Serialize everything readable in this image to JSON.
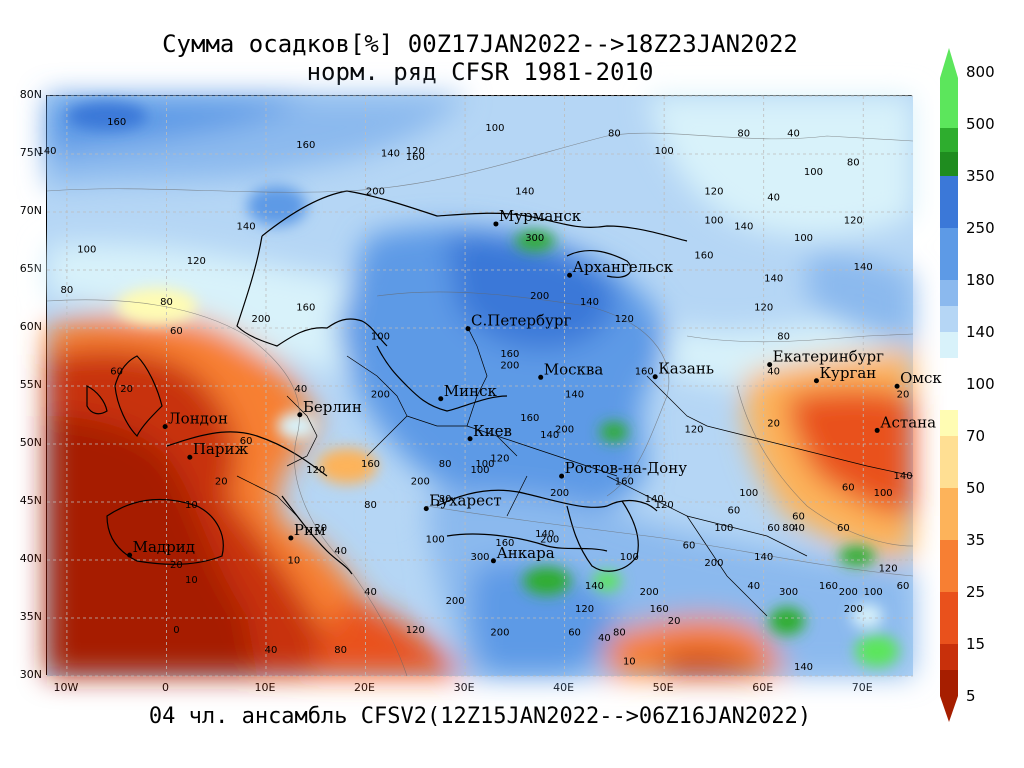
{
  "title_line1": "Сумма осадков[%] 00Z17JAN2022-->18Z23JAN2022",
  "title_line2": "норм. ряд CFSR 1981-2010",
  "footer": "04 чл. ансамбль CFSV2(12Z15JAN2022-->06Z16JAN2022)",
  "lat_labels": [
    "80N",
    "75N",
    "70N",
    "65N",
    "60N",
    "55N",
    "50N",
    "45N",
    "40N",
    "35N",
    "30N"
  ],
  "lon_labels": [
    "10W",
    "0",
    "10E",
    "20E",
    "30E",
    "40E",
    "50E",
    "60E",
    "70E"
  ],
  "colorbar": {
    "labels": [
      "800",
      "500",
      "350",
      "250",
      "180",
      "140",
      "100",
      "70",
      "50",
      "35",
      "25",
      "15",
      "5"
    ],
    "colors": [
      "#5ce65c",
      "#2ead2e",
      "#1f8c1f",
      "#3b78d8",
      "#5d9ae6",
      "#8bb9ee",
      "#b5d6f5",
      "#d8f2fa",
      "#fffcb3",
      "#ffdf93",
      "#fdb35a",
      "#f77f33",
      "#e9511c",
      "#c8300b",
      "#a61e00"
    ]
  },
  "cities": [
    {
      "name": "Мурманск",
      "lon": 33.1,
      "lat": 68.97
    },
    {
      "name": "Архангельск",
      "lon": 40.5,
      "lat": 64.55
    },
    {
      "name": "С.Петербург",
      "lon": 30.3,
      "lat": 59.94
    },
    {
      "name": "Москва",
      "lon": 37.6,
      "lat": 55.75
    },
    {
      "name": "Казань",
      "lon": 49.1,
      "lat": 55.8
    },
    {
      "name": "Екатеринбург",
      "lon": 60.6,
      "lat": 56.84
    },
    {
      "name": "Курган",
      "lon": 65.3,
      "lat": 55.45
    },
    {
      "name": "Омск",
      "lon": 73.4,
      "lat": 54.98
    },
    {
      "name": "Астана",
      "lon": 71.4,
      "lat": 51.17
    },
    {
      "name": "Минск",
      "lon": 27.56,
      "lat": 53.9
    },
    {
      "name": "Берлин",
      "lon": 13.4,
      "lat": 52.52
    },
    {
      "name": "Лондон",
      "lon": -0.13,
      "lat": 51.5
    },
    {
      "name": "Париж",
      "lon": 2.35,
      "lat": 48.86
    },
    {
      "name": "Киев",
      "lon": 30.5,
      "lat": 50.45
    },
    {
      "name": "Ростов-на-Дону",
      "lon": 39.7,
      "lat": 47.23
    },
    {
      "name": "Бухарест",
      "lon": 26.1,
      "lat": 44.43
    },
    {
      "name": "Мадрид",
      "lon": -3.7,
      "lat": 40.42
    },
    {
      "name": "Рим",
      "lon": 12.5,
      "lat": 41.9
    },
    {
      "name": "Анкара",
      "lon": 32.85,
      "lat": 39.93
    }
  ],
  "contour_labels": [
    {
      "t": "160",
      "lon": -5,
      "lat": 77.5
    },
    {
      "t": "140",
      "lon": -12,
      "lat": 75
    },
    {
      "t": "160",
      "lon": 14,
      "lat": 75.5
    },
    {
      "t": "140",
      "lon": 22.5,
      "lat": 74.8
    },
    {
      "t": "120",
      "lon": 25,
      "lat": 75
    },
    {
      "t": "160",
      "lon": 25,
      "lat": 74.5
    },
    {
      "t": "100",
      "lon": 33,
      "lat": 77
    },
    {
      "t": "80",
      "lon": 45,
      "lat": 76.5
    },
    {
      "t": "100",
      "lon": 50,
      "lat": 75
    },
    {
      "t": "80",
      "lon": 58,
      "lat": 76.5
    },
    {
      "t": "40",
      "lon": 63,
      "lat": 76.5
    },
    {
      "t": "200",
      "lon": 21,
      "lat": 71.5
    },
    {
      "t": "140",
      "lon": 36,
      "lat": 71.5
    },
    {
      "t": "140",
      "lon": 8,
      "lat": 68.5
    },
    {
      "t": "100",
      "lon": -8,
      "lat": 66.5
    },
    {
      "t": "120",
      "lon": 3,
      "lat": 65.5
    },
    {
      "t": "300",
      "lon": 37,
      "lat": 67.5
    },
    {
      "t": "200",
      "lon": 37.5,
      "lat": 62.5
    },
    {
      "t": "140",
      "lon": 42.5,
      "lat": 62
    },
    {
      "t": "120",
      "lon": 46,
      "lat": 60.5
    },
    {
      "t": "80",
      "lon": -10,
      "lat": 63
    },
    {
      "t": "80",
      "lon": 0,
      "lat": 62
    },
    {
      "t": "200",
      "lon": 9.5,
      "lat": 60.5
    },
    {
      "t": "160",
      "lon": 14,
      "lat": 61.5
    },
    {
      "t": "60",
      "lon": 1,
      "lat": 59.5
    },
    {
      "t": "100",
      "lon": 21.5,
      "lat": 59
    },
    {
      "t": "160",
      "lon": 34.5,
      "lat": 57.5
    },
    {
      "t": "200",
      "lon": 34.5,
      "lat": 56.5
    },
    {
      "t": "160",
      "lon": 48,
      "lat": 56
    },
    {
      "t": "140",
      "lon": 61,
      "lat": 64
    },
    {
      "t": "120",
      "lon": 60,
      "lat": 61.5
    },
    {
      "t": "80",
      "lon": 62,
      "lat": 59
    },
    {
      "t": "160",
      "lon": 54,
      "lat": 66
    },
    {
      "t": "100",
      "lon": 55,
      "lat": 69
    },
    {
      "t": "120",
      "lon": 55,
      "lat": 71.5
    },
    {
      "t": "140",
      "lon": 58,
      "lat": 68.5
    },
    {
      "t": "100",
      "lon": 64,
      "lat": 67.5
    },
    {
      "t": "120",
      "lon": 69,
      "lat": 69
    },
    {
      "t": "140",
      "lon": 70,
      "lat": 65
    },
    {
      "t": "100",
      "lon": 65,
      "lat": 73.2
    },
    {
      "t": "80",
      "lon": 69,
      "lat": 74
    },
    {
      "t": "40",
      "lon": 61,
      "lat": 71
    },
    {
      "t": "40",
      "lon": 61,
      "lat": 56
    },
    {
      "t": "20",
      "lon": 61,
      "lat": 51.5
    },
    {
      "t": "20",
      "lon": 74,
      "lat": 54
    },
    {
      "t": "200",
      "lon": 21.5,
      "lat": 54
    },
    {
      "t": "160",
      "lon": 36.5,
      "lat": 52
    },
    {
      "t": "140",
      "lon": 38.5,
      "lat": 50.5
    },
    {
      "t": "200",
      "lon": 40,
      "lat": 51
    },
    {
      "t": "140",
      "lon": 41,
      "lat": 54
    },
    {
      "t": "120",
      "lon": 33.5,
      "lat": 48.5
    },
    {
      "t": "100",
      "lon": 32,
      "lat": 48
    },
    {
      "t": "160",
      "lon": 46,
      "lat": 46.5
    },
    {
      "t": "200",
      "lon": 39.5,
      "lat": 45.5
    },
    {
      "t": "140",
      "lon": 49,
      "lat": 45
    },
    {
      "t": "120",
      "lon": 50,
      "lat": 44.5
    },
    {
      "t": "100",
      "lon": 58.5,
      "lat": 45.5
    },
    {
      "t": "60",
      "lon": 57,
      "lat": 44
    },
    {
      "t": "100",
      "lon": 56,
      "lat": 42.5
    },
    {
      "t": "60",
      "lon": 61,
      "lat": 42.5
    },
    {
      "t": "80",
      "lon": 62.5,
      "lat": 42.5
    },
    {
      "t": "60",
      "lon": 63.5,
      "lat": 43.5
    },
    {
      "t": "40",
      "lon": 63.5,
      "lat": 42.5
    },
    {
      "t": "60",
      "lon": 68,
      "lat": 42.5
    },
    {
      "t": "140",
      "lon": 60,
      "lat": 40
    },
    {
      "t": "160",
      "lon": 66.5,
      "lat": 37.5
    },
    {
      "t": "200",
      "lon": 68.5,
      "lat": 37
    },
    {
      "t": "100",
      "lon": 71,
      "lat": 37
    },
    {
      "t": "200",
      "lon": 69,
      "lat": 35.5
    },
    {
      "t": "300",
      "lon": 62.5,
      "lat": 37
    },
    {
      "t": "40",
      "lon": 59,
      "lat": 37.5
    },
    {
      "t": "140",
      "lon": 64,
      "lat": 30.5
    },
    {
      "t": "120",
      "lon": 72.5,
      "lat": 39
    },
    {
      "t": "60",
      "lon": 74,
      "lat": 37.5
    },
    {
      "t": "200",
      "lon": 55,
      "lat": 39.5
    },
    {
      "t": "60",
      "lon": 52.5,
      "lat": 41
    },
    {
      "t": "100",
      "lon": 46.5,
      "lat": 40
    },
    {
      "t": "200",
      "lon": 48.5,
      "lat": 37
    },
    {
      "t": "160",
      "lon": 49.5,
      "lat": 35.5
    },
    {
      "t": "20",
      "lon": 51,
      "lat": 34.5
    },
    {
      "t": "140",
      "lon": 43,
      "lat": 37.5
    },
    {
      "t": "120",
      "lon": 42,
      "lat": 35.5
    },
    {
      "t": "60",
      "lon": 41,
      "lat": 33.5
    },
    {
      "t": "40",
      "lon": 44,
      "lat": 33
    },
    {
      "t": "80",
      "lon": 45.5,
      "lat": 33.5
    },
    {
      "t": "10",
      "lon": 46.5,
      "lat": 31
    },
    {
      "t": "200",
      "lon": 33.5,
      "lat": 33.5
    },
    {
      "t": "120",
      "lon": 25,
      "lat": 33.7
    },
    {
      "t": "200",
      "lon": 29,
      "lat": 36.2
    },
    {
      "t": "40",
      "lon": 20.5,
      "lat": 37
    },
    {
      "t": "80",
      "lon": 17.5,
      "lat": 32
    },
    {
      "t": "40",
      "lon": 10.5,
      "lat": 32
    },
    {
      "t": "0",
      "lon": 1,
      "lat": 33.7
    },
    {
      "t": "10",
      "lon": 2.5,
      "lat": 38
    },
    {
      "t": "20",
      "lon": 1,
      "lat": 39.3
    },
    {
      "t": "10",
      "lon": 12.8,
      "lat": 39.7
    },
    {
      "t": "40",
      "lon": 17.5,
      "lat": 40.5
    },
    {
      "t": "20",
      "lon": 15.5,
      "lat": 42.5
    },
    {
      "t": "80",
      "lon": 20.5,
      "lat": 44.5
    },
    {
      "t": "10",
      "lon": 2.5,
      "lat": 44.5
    },
    {
      "t": "20",
      "lon": 5.5,
      "lat": 46.5
    },
    {
      "t": "60",
      "lon": 8,
      "lat": 50
    },
    {
      "t": "40",
      "lon": 13.5,
      "lat": 54.5
    },
    {
      "t": "20",
      "lon": -4,
      "lat": 54.5
    },
    {
      "t": "60",
      "lon": -5,
      "lat": 56
    },
    {
      "t": "120",
      "lon": 15,
      "lat": 47.5
    },
    {
      "t": "160",
      "lon": 20.5,
      "lat": 48
    },
    {
      "t": "200",
      "lon": 25.5,
      "lat": 46.5
    },
    {
      "t": "80",
      "lon": 28,
      "lat": 48
    },
    {
      "t": "100",
      "lon": 31.5,
      "lat": 47.5
    },
    {
      "t": "80",
      "lon": 28,
      "lat": 45
    },
    {
      "t": "100",
      "lon": 27,
      "lat": 41.5
    },
    {
      "t": "300",
      "lon": 31.5,
      "lat": 40
    },
    {
      "t": "200",
      "lon": 38.5,
      "lat": 41.5
    },
    {
      "t": "160",
      "lon": 34,
      "lat": 41.2
    },
    {
      "t": "140",
      "lon": 38,
      "lat": 42
    },
    {
      "t": "120",
      "lon": 53,
      "lat": 51
    },
    {
      "t": "140",
      "lon": 74,
      "lat": 47
    },
    {
      "t": "60",
      "lon": 68.5,
      "lat": 46
    },
    {
      "t": "100",
      "lon": 72,
      "lat": 45.5
    }
  ]
}
